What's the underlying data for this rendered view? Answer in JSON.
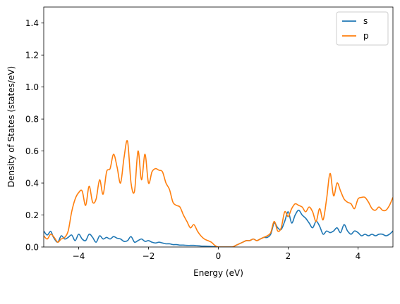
{
  "chart_data": {
    "type": "line",
    "title": "",
    "xlabel": "Energy (eV)",
    "ylabel": "Density of States (states/eV)",
    "xlim": [
      -5,
      5
    ],
    "ylim": [
      0,
      1.5
    ],
    "xticks": [
      -4,
      -2,
      0,
      2,
      4
    ],
    "xtick_labels": [
      "−4",
      "−2",
      "0",
      "2",
      "4"
    ],
    "yticks": [
      0.0,
      0.2,
      0.4,
      0.6,
      0.8,
      1.0,
      1.2,
      1.4
    ],
    "ytick_labels": [
      "0.0",
      "0.2",
      "0.4",
      "0.6",
      "0.8",
      "1.0",
      "1.2",
      "1.4"
    ],
    "grid": false,
    "legend_position": "top-right",
    "series": [
      {
        "name": "s",
        "color": "#1f77b4",
        "x": [
          -5.0,
          -4.9,
          -4.8,
          -4.72,
          -4.6,
          -4.5,
          -4.4,
          -4.3,
          -4.2,
          -4.1,
          -4.0,
          -3.9,
          -3.8,
          -3.7,
          -3.6,
          -3.5,
          -3.4,
          -3.3,
          -3.2,
          -3.1,
          -3.0,
          -2.9,
          -2.8,
          -2.7,
          -2.6,
          -2.5,
          -2.4,
          -2.3,
          -2.2,
          -2.1,
          -2.0,
          -1.9,
          -1.8,
          -1.7,
          -1.6,
          -1.5,
          -1.4,
          -1.3,
          -1.2,
          -1.1,
          -1.0,
          -0.9,
          -0.8,
          -0.7,
          -0.6,
          -0.5,
          -0.4,
          -0.3,
          -0.2,
          -0.1,
          0.0,
          0.2,
          0.4,
          0.5,
          0.6,
          0.7,
          0.8,
          0.9,
          1.0,
          1.1,
          1.2,
          1.3,
          1.4,
          1.5,
          1.6,
          1.7,
          1.8,
          1.9,
          2.0,
          2.1,
          2.2,
          2.3,
          2.4,
          2.5,
          2.6,
          2.7,
          2.8,
          2.9,
          3.0,
          3.1,
          3.2,
          3.3,
          3.4,
          3.5,
          3.6,
          3.7,
          3.8,
          3.9,
          4.0,
          4.1,
          4.2,
          4.3,
          4.4,
          4.5,
          4.6,
          4.7,
          4.8,
          4.9,
          5.0
        ],
        "y": [
          0.1,
          0.075,
          0.098,
          0.06,
          0.03,
          0.07,
          0.05,
          0.06,
          0.075,
          0.04,
          0.08,
          0.05,
          0.04,
          0.08,
          0.06,
          0.03,
          0.07,
          0.05,
          0.06,
          0.05,
          0.065,
          0.055,
          0.05,
          0.035,
          0.04,
          0.065,
          0.03,
          0.04,
          0.05,
          0.035,
          0.04,
          0.03,
          0.025,
          0.03,
          0.025,
          0.02,
          0.02,
          0.015,
          0.015,
          0.012,
          0.012,
          0.01,
          0.01,
          0.01,
          0.008,
          0.006,
          0.005,
          0.004,
          0.003,
          0.002,
          0.0,
          0.0,
          0.0,
          0.01,
          0.02,
          0.03,
          0.04,
          0.04,
          0.05,
          0.04,
          0.05,
          0.06,
          0.06,
          0.08,
          0.15,
          0.12,
          0.11,
          0.16,
          0.22,
          0.15,
          0.2,
          0.23,
          0.2,
          0.18,
          0.15,
          0.12,
          0.16,
          0.13,
          0.08,
          0.1,
          0.09,
          0.1,
          0.12,
          0.09,
          0.14,
          0.1,
          0.08,
          0.1,
          0.09,
          0.07,
          0.08,
          0.07,
          0.08,
          0.07,
          0.08,
          0.08,
          0.07,
          0.08,
          0.1
        ]
      },
      {
        "name": "p",
        "color": "#ff7f0e",
        "x": [
          -5.0,
          -4.9,
          -4.8,
          -4.7,
          -4.6,
          -4.5,
          -4.4,
          -4.3,
          -4.2,
          -4.1,
          -4.0,
          -3.9,
          -3.8,
          -3.7,
          -3.6,
          -3.5,
          -3.4,
          -3.3,
          -3.2,
          -3.1,
          -3.0,
          -2.9,
          -2.8,
          -2.7,
          -2.6,
          -2.5,
          -2.4,
          -2.3,
          -2.2,
          -2.1,
          -2.0,
          -1.9,
          -1.8,
          -1.7,
          -1.6,
          -1.5,
          -1.4,
          -1.3,
          -1.2,
          -1.1,
          -1.0,
          -0.9,
          -0.8,
          -0.7,
          -0.6,
          -0.5,
          -0.4,
          -0.3,
          -0.2,
          -0.1,
          0.0,
          0.2,
          0.4,
          0.5,
          0.6,
          0.7,
          0.8,
          0.9,
          1.0,
          1.1,
          1.2,
          1.3,
          1.4,
          1.5,
          1.6,
          1.7,
          1.8,
          1.9,
          2.0,
          2.1,
          2.2,
          2.3,
          2.4,
          2.5,
          2.6,
          2.7,
          2.8,
          2.9,
          3.0,
          3.1,
          3.2,
          3.3,
          3.4,
          3.5,
          3.6,
          3.7,
          3.8,
          3.9,
          4.0,
          4.1,
          4.2,
          4.3,
          4.4,
          4.5,
          4.6,
          4.7,
          4.8,
          4.9,
          5.0
        ],
        "y": [
          0.07,
          0.05,
          0.08,
          0.06,
          0.03,
          0.05,
          0.06,
          0.1,
          0.22,
          0.3,
          0.34,
          0.35,
          0.26,
          0.38,
          0.28,
          0.3,
          0.42,
          0.33,
          0.47,
          0.49,
          0.58,
          0.5,
          0.4,
          0.56,
          0.66,
          0.4,
          0.35,
          0.6,
          0.42,
          0.58,
          0.4,
          0.47,
          0.49,
          0.48,
          0.47,
          0.4,
          0.36,
          0.28,
          0.26,
          0.25,
          0.2,
          0.16,
          0.12,
          0.14,
          0.1,
          0.07,
          0.05,
          0.04,
          0.03,
          0.01,
          0.0,
          0.0,
          0.0,
          0.01,
          0.02,
          0.03,
          0.04,
          0.04,
          0.05,
          0.04,
          0.05,
          0.06,
          0.07,
          0.09,
          0.16,
          0.1,
          0.12,
          0.22,
          0.19,
          0.24,
          0.27,
          0.26,
          0.25,
          0.22,
          0.25,
          0.22,
          0.16,
          0.24,
          0.17,
          0.3,
          0.46,
          0.32,
          0.4,
          0.35,
          0.3,
          0.28,
          0.27,
          0.24,
          0.3,
          0.31,
          0.31,
          0.28,
          0.24,
          0.23,
          0.25,
          0.23,
          0.23,
          0.26,
          0.31
        ]
      }
    ]
  }
}
